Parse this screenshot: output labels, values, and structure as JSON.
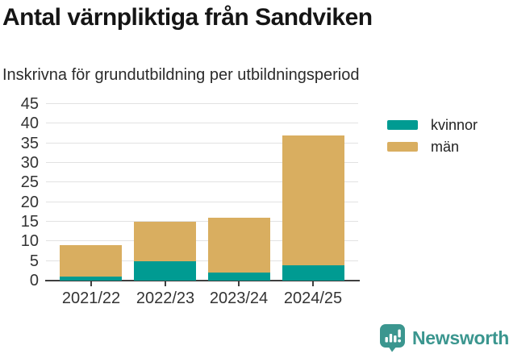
{
  "header": {
    "title": "Antal värnpliktiga från Sandviken",
    "subtitle": "Inskrivna för grundutbildning per utbildningsperiod"
  },
  "chart_data": {
    "type": "bar",
    "stacked": true,
    "title": "Antal värnpliktiga från Sandviken",
    "subtitle": "Inskrivna för grundutbildning per utbildningsperiod",
    "categories": [
      "2021/22",
      "2022/23",
      "2023/24",
      "2024/25"
    ],
    "series": [
      {
        "name": "kvinnor",
        "color": "#009b92",
        "values": [
          1,
          5,
          2,
          4
        ]
      },
      {
        "name": "män",
        "color": "#d9ae60",
        "values": [
          8,
          10,
          14,
          33
        ]
      }
    ],
    "totals": [
      9,
      15,
      16,
      37
    ],
    "xlabel": "",
    "ylabel": "",
    "ylim": [
      0,
      45
    ],
    "yticks": [
      0,
      5,
      10,
      15,
      20,
      25,
      30,
      35,
      40,
      45
    ],
    "grid": true,
    "legend_position": "right-top"
  },
  "legend": {
    "items": [
      {
        "label": "kvinnor",
        "color": "#009b92"
      },
      {
        "label": "män",
        "color": "#d9ae60"
      }
    ]
  },
  "footer": {
    "brand": "Newsworthy"
  },
  "colors": {
    "kvinnor": "#009b92",
    "man": "#d9ae60",
    "axis": "#3f3f3f",
    "grid": "#e2e2e2",
    "brand_teal": "#3b968f",
    "text": "#333333"
  }
}
